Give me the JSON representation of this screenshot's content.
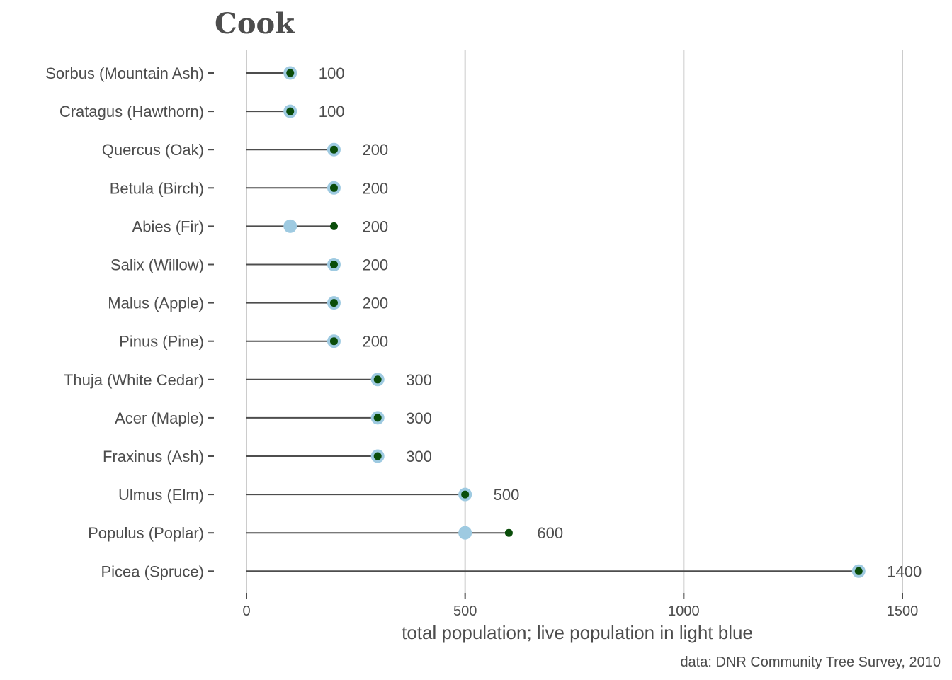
{
  "chart_data": {
    "type": "lollipop",
    "title": "Cook",
    "xlabel": "total population; live population in light blue",
    "caption": "data: DNR Community Tree Survey, 2010",
    "xlim": [
      0,
      1500
    ],
    "xticks": [
      0,
      500,
      1000,
      1500
    ],
    "grid": "vertical major",
    "colors": {
      "total_point": "#0a4d0a",
      "live_point": "#9ecae1",
      "stem": "#4d4d4d",
      "grid": "#cccccc",
      "text": "#4d4d4d"
    },
    "categories": [
      "Sorbus (Mountain Ash)",
      "Cratagus (Hawthorn)",
      "Quercus (Oak)",
      "Betula (Birch)",
      "Abies (Fir)",
      "Salix (Willow)",
      "Malus (Apple)",
      "Pinus (Pine)",
      "Thuja (White Cedar)",
      "Acer (Maple)",
      "Fraxinus (Ash)",
      "Ulmus (Elm)",
      "Populus (Poplar)",
      "Picea (Spruce)"
    ],
    "series": [
      {
        "values": [
          100,
          100,
          200,
          200,
          200,
          200,
          200,
          200,
          300,
          300,
          300,
          500,
          600,
          1400
        ]
      },
      {
        "values": [
          100,
          100,
          200,
          200,
          100,
          200,
          200,
          200,
          300,
          300,
          300,
          500,
          500,
          1400
        ]
      }
    ],
    "value_labels": [
      "100",
      "100",
      "200",
      "200",
      "200",
      "200",
      "200",
      "200",
      "300",
      "300",
      "300",
      "500",
      "600",
      "1400"
    ]
  }
}
